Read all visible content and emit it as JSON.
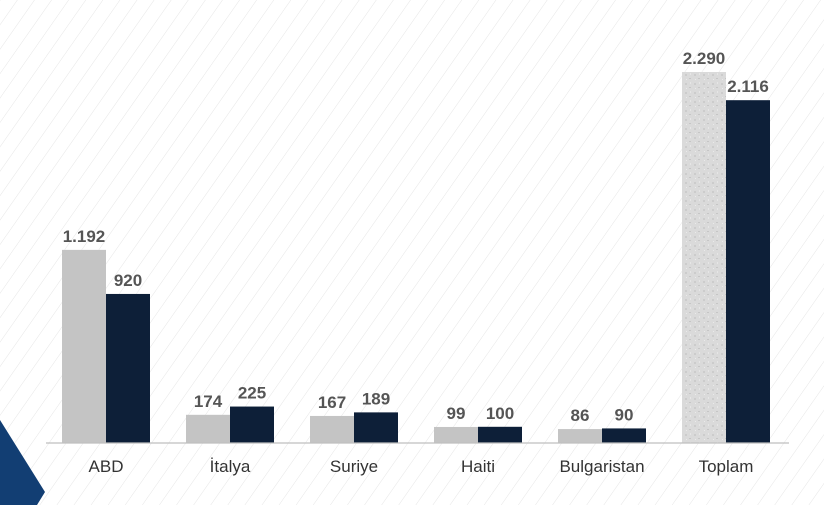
{
  "chart_data": {
    "type": "bar",
    "title": "",
    "xlabel": "",
    "ylabel": "",
    "categories": [
      "ABD",
      "İtalya",
      "Suriye",
      "Haiti",
      "Bulgaristan",
      "Toplam"
    ],
    "series": [
      {
        "color": "#c4c4c4",
        "values": [
          1192,
          174,
          167,
          99,
          86,
          2290
        ],
        "labels": [
          "1.192",
          "174",
          "167",
          "99",
          "86",
          "2.290"
        ]
      },
      {
        "color": "#0d1f38",
        "values": [
          920,
          225,
          189,
          100,
          90,
          2116
        ],
        "labels": [
          "920",
          "225",
          "189",
          "100",
          "90",
          "2.116"
        ]
      }
    ],
    "ylim": [
      0,
      2290
    ],
    "grid": false,
    "legend": "none",
    "colors": {
      "axis": "#bfbfbf",
      "corner_accent": "#123e73",
      "background_stripes": "#e6e6e6"
    }
  }
}
